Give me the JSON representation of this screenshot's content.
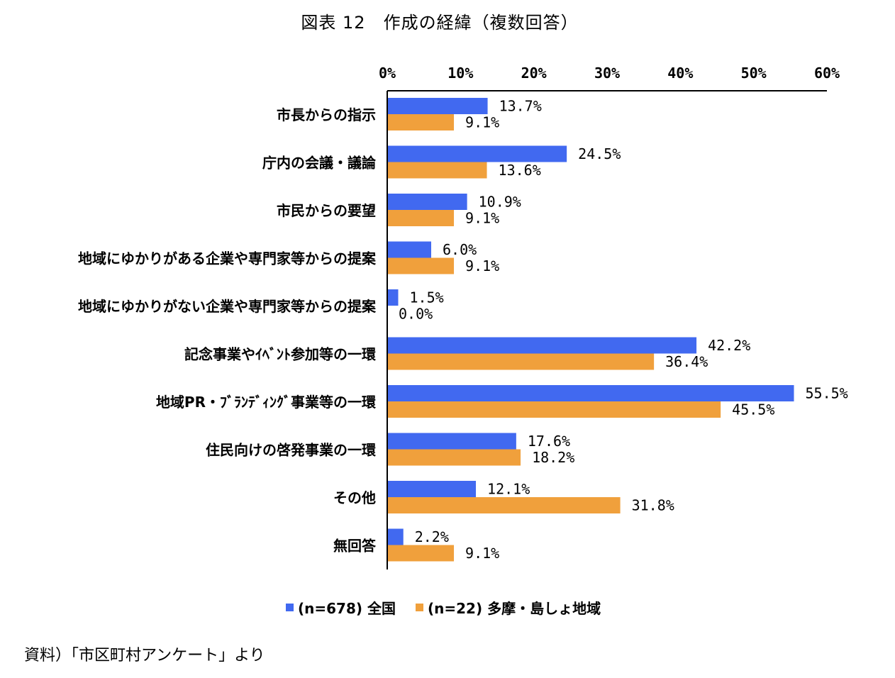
{
  "chart_data": {
    "type": "bar",
    "orientation": "horizontal",
    "title": "図表 12　作成の経緯（複数回答）",
    "categories": [
      "市長からの指示",
      "庁内の会議・議論",
      "市民からの要望",
      "地域にゆかりがある企業や専門家等からの提案",
      "地域にゆかりがない企業や専門家等からの提案",
      "記念事業やｲﾍﾞﾝﾄ参加等の一環",
      "地域PR・ﾌﾞﾗﾝﾃﾞｨﾝｸﾞ事業等の一環",
      "住民向けの啓発事業の一環",
      "その他",
      "無回答"
    ],
    "series": [
      {
        "name": "(n=678) 全国",
        "color": "#4169f0",
        "values": [
          13.7,
          24.5,
          10.9,
          6.0,
          1.5,
          42.2,
          55.5,
          17.6,
          12.1,
          2.2
        ]
      },
      {
        "name": "(n=22) 多摩・島しょ地域",
        "color": "#f0a03c",
        "values": [
          9.1,
          13.6,
          9.1,
          9.1,
          0.0,
          36.4,
          45.5,
          18.2,
          31.8,
          9.1
        ]
      }
    ],
    "xlim": [
      0,
      60
    ],
    "xticks": [
      "0%",
      "10%",
      "20%",
      "30%",
      "40%",
      "50%",
      "60%"
    ],
    "xtick_values": [
      0,
      10,
      20,
      30,
      40,
      50,
      60
    ],
    "value_suffix": "%",
    "legend_position": "bottom",
    "grid": false
  },
  "source_note": "資料）「市区町村アンケート」より"
}
